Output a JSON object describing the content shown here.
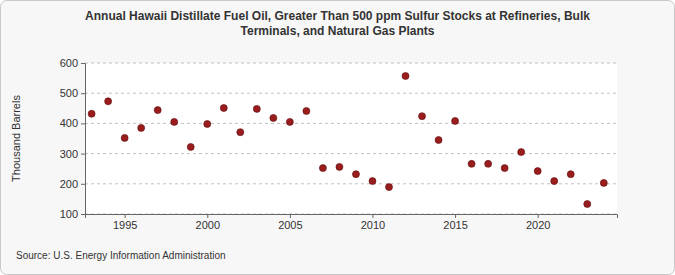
{
  "chart_data": {
    "type": "scatter",
    "title": "Annual Hawaii Distillate Fuel Oil, Greater Than 500 ppm Sulfur Stocks at Refineries, Bulk Terminals, and Natural Gas Plants",
    "y_label": "Thousand Barrels",
    "annotations": [
      "Source: U.S. Energy Information Administration"
    ],
    "x": [
      1993,
      1994,
      1995,
      1996,
      1997,
      1998,
      1999,
      2000,
      2001,
      2002,
      2003,
      2004,
      2005,
      2006,
      2007,
      2008,
      2009,
      2010,
      2011,
      2012,
      2013,
      2014,
      2015,
      2016,
      2017,
      2018,
      2019,
      2020,
      2021,
      2022,
      2023,
      2024
    ],
    "values": [
      432,
      473,
      352,
      385,
      444,
      405,
      322,
      398,
      451,
      371,
      448,
      418,
      405,
      441,
      252,
      256,
      232,
      209,
      189,
      557,
      424,
      345,
      408,
      266,
      266,
      252,
      305,
      242,
      209,
      232,
      133,
      203
    ],
    "color": "#9b1c1c",
    "marker": "circle",
    "xlim": [
      1992.6,
      2024.8
    ],
    "xticks": [
      1995,
      2000,
      2005,
      2010,
      2015,
      2020
    ],
    "ylim": [
      100,
      600
    ],
    "yticks": [
      100,
      200,
      300,
      400,
      500,
      600
    ],
    "grid": true
  }
}
